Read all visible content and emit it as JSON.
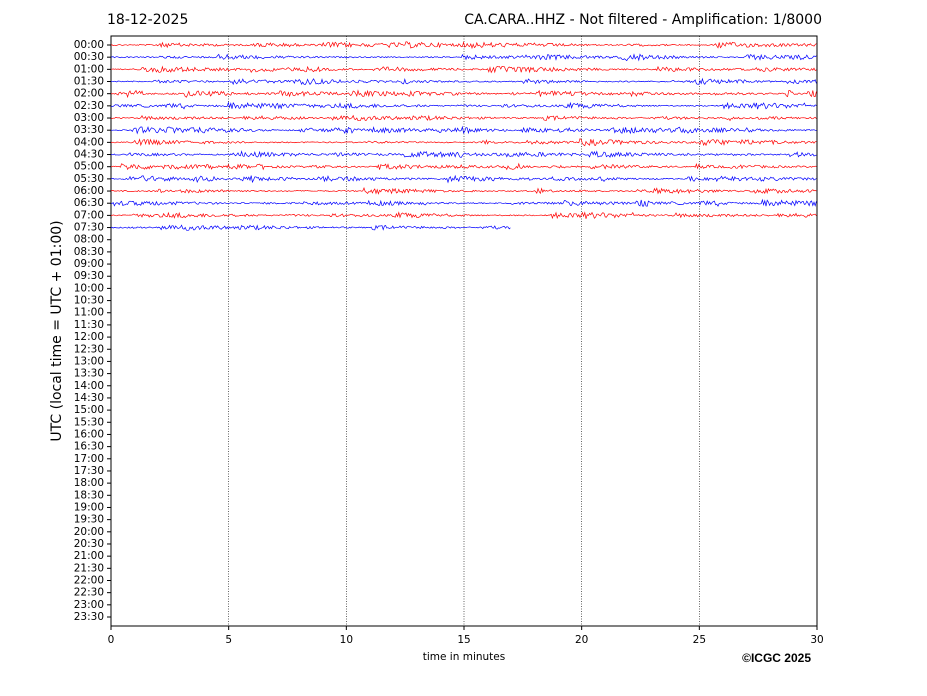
{
  "chart_data": {
    "type": "helicorder",
    "date": "18-12-2025",
    "title": "CA.CARA..HHZ - Not filtered - Amplification: 1/8000",
    "ylabel": "UTC (local time = UTC + 01:00)",
    "xlabel": "time in minutes",
    "copyright": "©ICGC 2025",
    "xlim": [
      0,
      30
    ],
    "xticks": [
      0,
      5,
      10,
      15,
      20,
      25,
      30
    ],
    "grid": true,
    "categories": [
      "00:00",
      "00:30",
      "01:00",
      "01:30",
      "02:00",
      "02:30",
      "03:00",
      "03:30",
      "04:00",
      "04:30",
      "05:00",
      "05:30",
      "06:00",
      "06:30",
      "07:00",
      "07:30",
      "08:00",
      "08:30",
      "09:00",
      "09:30",
      "10:00",
      "10:30",
      "11:00",
      "11:30",
      "12:00",
      "12:30",
      "13:00",
      "13:30",
      "14:00",
      "14:30",
      "15:00",
      "15:30",
      "16:00",
      "16:30",
      "17:00",
      "17:30",
      "18:00",
      "18:30",
      "19:00",
      "19:30",
      "20:00",
      "20:30",
      "21:00",
      "21:30",
      "22:00",
      "22:30",
      "23:00",
      "23:30"
    ],
    "traces": [
      {
        "color": "#ff0000",
        "end": 30
      },
      {
        "color": "#0000ff",
        "end": 30
      },
      {
        "color": "#ff0000",
        "end": 30
      },
      {
        "color": "#0000ff",
        "end": 30
      },
      {
        "color": "#ff0000",
        "end": 30
      },
      {
        "color": "#0000ff",
        "end": 30
      },
      {
        "color": "#ff0000",
        "end": 30
      },
      {
        "color": "#0000ff",
        "end": 30
      },
      {
        "color": "#ff0000",
        "end": 30
      },
      {
        "color": "#0000ff",
        "end": 30
      },
      {
        "color": "#ff0000",
        "end": 30
      },
      {
        "color": "#0000ff",
        "end": 30
      },
      {
        "color": "#ff0000",
        "end": 30
      },
      {
        "color": "#0000ff",
        "end": 30
      },
      {
        "color": "#ff0000",
        "end": 30
      },
      {
        "color": "#0000ff",
        "end": 17
      }
    ]
  }
}
